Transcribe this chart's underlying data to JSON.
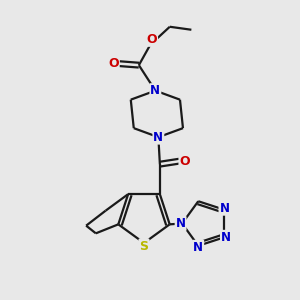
{
  "bg_color": "#e8e8e8",
  "bond_color": "#1a1a1a",
  "N_color": "#0000cc",
  "O_color": "#cc0000",
  "S_color": "#b8b800",
  "line_width": 1.6,
  "font_size": 8.5,
  "fig_w": 3.0,
  "fig_h": 3.0,
  "dpi": 100,
  "xlim": [
    0,
    10
  ],
  "ylim": [
    0,
    10
  ]
}
